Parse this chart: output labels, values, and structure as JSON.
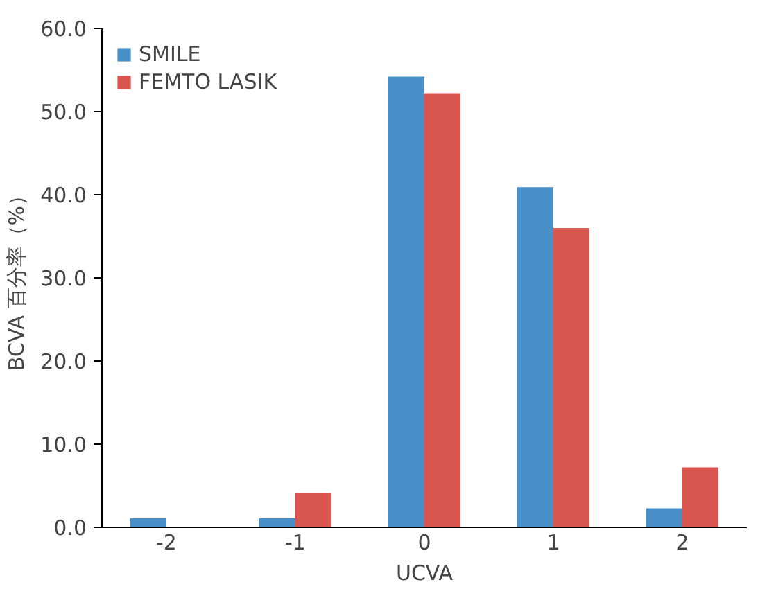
{
  "chart_data": {
    "type": "bar",
    "xlabel": "UCVA",
    "ylabel": "BCVA 百分率（%）",
    "categories": [
      "-2",
      "-1",
      "0",
      "1",
      "2"
    ],
    "series": [
      {
        "name": "SMILE",
        "color": "#4a90c8",
        "values": [
          1.1,
          1.1,
          54.2,
          40.9,
          2.3
        ]
      },
      {
        "name": "FEMTO LASIK",
        "color": "#d95550",
        "values": [
          0,
          4.1,
          52.2,
          36.0,
          7.2
        ]
      }
    ],
    "ylim": [
      0,
      60
    ],
    "yticks": [
      {
        "value": 0,
        "label": "0.0"
      },
      {
        "value": 10,
        "label": "10.0"
      },
      {
        "value": 20,
        "label": "20.0"
      },
      {
        "value": 30,
        "label": "30.0"
      },
      {
        "value": 40,
        "label": "40.0"
      },
      {
        "value": 50,
        "label": "50.0"
      },
      {
        "value": 60,
        "label": "60.0"
      }
    ],
    "grid": false,
    "legend": "top left"
  }
}
